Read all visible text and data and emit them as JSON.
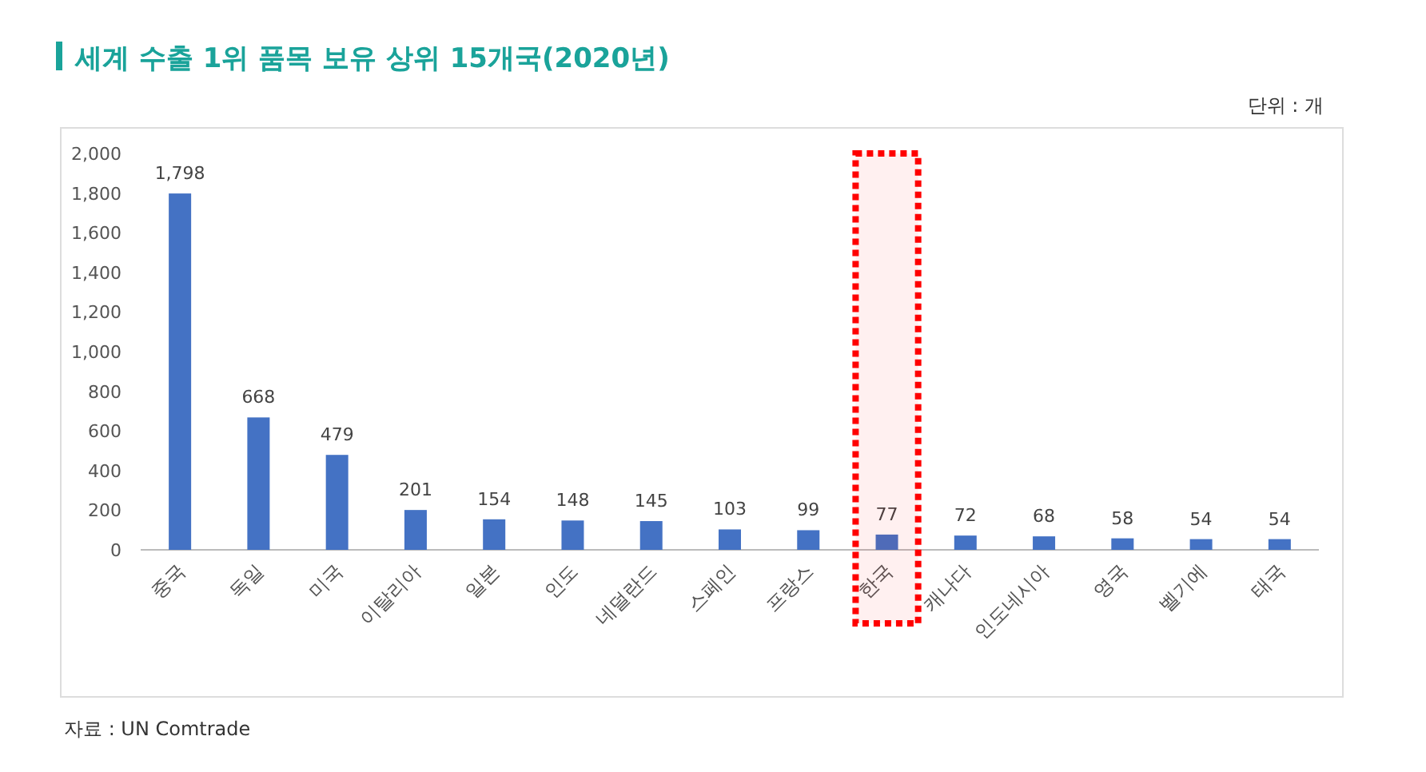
{
  "chart_data": {
    "type": "bar",
    "title": "세계 수출 1위 품목 보유 상위 15개국(2020년)",
    "subtitle": "단위 : 개",
    "categories": [
      "중국",
      "독일",
      "미국",
      "이탈리아",
      "일본",
      "인도",
      "네덜란드",
      "스페인",
      "프랑스",
      "한국",
      "캐나다",
      "인도네시아",
      "영국",
      "벨기에",
      "태국"
    ],
    "values": [
      1798,
      668,
      479,
      201,
      154,
      148,
      145,
      103,
      99,
      77,
      72,
      68,
      58,
      54,
      54
    ],
    "color": "#4472c4",
    "ylim": [
      0,
      2000
    ],
    "yticks": [
      {
        "value": 0,
        "label": "0"
      },
      {
        "value": 200,
        "label": "200"
      },
      {
        "value": 400,
        "label": "400"
      },
      {
        "value": 600,
        "label": "600"
      },
      {
        "value": 800,
        "label": "800"
      },
      {
        "value": 1000,
        "label": "1,000"
      },
      {
        "value": 1200,
        "label": "1,200"
      },
      {
        "value": 1400,
        "label": "1,400"
      },
      {
        "value": 1600,
        "label": "1,600"
      },
      {
        "value": 1800,
        "label": "1,800"
      },
      {
        "value": 2000,
        "label": "2,000"
      }
    ],
    "value_labels": [
      "1,798",
      "668",
      "479",
      "201",
      "154",
      "148",
      "145",
      "103",
      "99",
      "77",
      "72",
      "68",
      "58",
      "54",
      "54"
    ],
    "annotations": [
      "자료 : UN Comtrade"
    ],
    "bands": [
      {
        "axis": "x",
        "from": "한국",
        "to": "한국",
        "color": "#ff0000"
      }
    ],
    "grid": false
  }
}
